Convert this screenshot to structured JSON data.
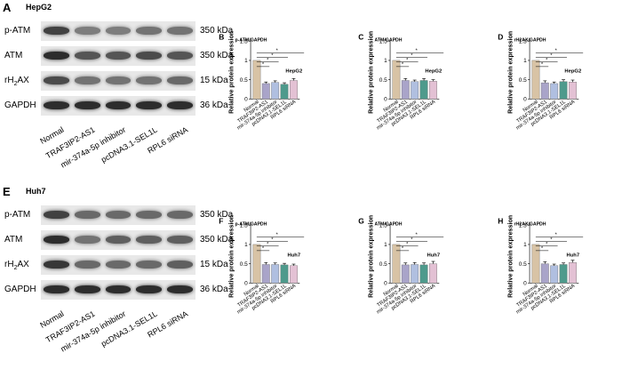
{
  "blots": [
    {
      "panel": "A",
      "cell_line": "HepG2",
      "proteins": [
        {
          "name": "p-ATM",
          "kda": "350 kDa",
          "intensity": [
            0.85,
            0.55,
            0.55,
            0.6,
            0.6
          ]
        },
        {
          "name": "ATM",
          "kda": "350 kDa",
          "intensity": [
            0.95,
            0.75,
            0.75,
            0.8,
            0.75
          ]
        },
        {
          "name": "rH2AX",
          "kda": "15 kDa",
          "intensity": [
            0.8,
            0.6,
            0.6,
            0.6,
            0.65
          ]
        },
        {
          "name": "GAPDH",
          "kda": "36 kDa",
          "intensity": [
            0.95,
            0.95,
            0.95,
            0.95,
            0.95
          ]
        }
      ],
      "lanes": [
        "Normal",
        "TRAF3IP2-AS1",
        "mir-374a-5p inhibitor",
        "pcDNA3.1-SEL1L",
        "RPL6 siRNA"
      ]
    },
    {
      "panel": "E",
      "cell_line": "Huh7",
      "proteins": [
        {
          "name": "p-ATM",
          "kda": "350 kDa",
          "intensity": [
            0.85,
            0.65,
            0.65,
            0.65,
            0.65
          ]
        },
        {
          "name": "ATM",
          "kda": "350 kDa",
          "intensity": [
            0.95,
            0.6,
            0.7,
            0.7,
            0.7
          ]
        },
        {
          "name": "rH2AX",
          "kda": "15 kDa",
          "intensity": [
            0.9,
            0.65,
            0.65,
            0.65,
            0.7
          ]
        },
        {
          "name": "GAPDH",
          "kda": "36 kDa",
          "intensity": [
            0.95,
            0.95,
            0.95,
            0.95,
            0.95
          ]
        }
      ],
      "lanes": [
        "Normal",
        "TRAF3IP2-AS1",
        "mir-374a-5p inhibitor",
        "pcDNA3.1-SEL1L",
        "RPL6 siRNA"
      ]
    }
  ],
  "colors": {
    "Normal": "#d8c3a5",
    "TRAF3IP2-AS1": "#a9a4c9",
    "mir-374a-5p inhibitor": "#b0bfe0",
    "pcDNA3.1-SEL1L": "#4e9a8c",
    "RPL6 siRNA": "#e3c1d4"
  },
  "chart_data": [
    {
      "panel": "B",
      "type": "bar",
      "title": "p-ATM/GAPDH",
      "cell_line": "HepG2",
      "ylabel": "Relative protein expression",
      "ylim": [
        0,
        1.5
      ],
      "yticks": [
        0,
        0.5,
        1,
        1.5
      ],
      "categories": [
        "Normal",
        "TRAF3IP2-AS1",
        "mir-374a-5p inhibitor",
        "pcDNA3.1-SEL1L",
        "RPL6 siRNA"
      ],
      "values": [
        1.0,
        0.4,
        0.43,
        0.38,
        0.48
      ],
      "errors": [
        0,
        0.04,
        0.04,
        0.04,
        0.05
      ],
      "significance": [
        "*",
        "*",
        "*",
        "*"
      ]
    },
    {
      "panel": "C",
      "type": "bar",
      "title": "ATM/GAPDH",
      "cell_line": "HepG2",
      "ylabel": "Relative protein expression",
      "ylim": [
        0,
        1.5
      ],
      "yticks": [
        0,
        0.5,
        1,
        1.5
      ],
      "categories": [
        "Normal",
        "TRAF3IP2-AS1",
        "mir-374a-5p inhibitor",
        "pcDNA3.1-SEL1L",
        "RPL6 siRNA"
      ],
      "values": [
        1.0,
        0.48,
        0.45,
        0.48,
        0.46
      ],
      "errors": [
        0,
        0.05,
        0.04,
        0.05,
        0.04
      ],
      "significance": [
        "*",
        "*",
        "*",
        "*"
      ]
    },
    {
      "panel": "D",
      "type": "bar",
      "title": "rH2AX/GAPDH",
      "cell_line": "HepG2",
      "ylabel": "Relative protein expression",
      "ylim": [
        0,
        1.5
      ],
      "yticks": [
        0,
        0.5,
        1,
        1.5
      ],
      "categories": [
        "Normal",
        "TRAF3IP2-AS1",
        "mir-374a-5p inhibitor",
        "pcDNA3.1-SEL1L",
        "RPL6 siRNA"
      ],
      "values": [
        1.0,
        0.42,
        0.4,
        0.45,
        0.44
      ],
      "errors": [
        0,
        0.05,
        0.04,
        0.05,
        0.05
      ],
      "significance": [
        "*",
        "*",
        "*",
        "*"
      ]
    },
    {
      "panel": "F",
      "type": "bar",
      "title": "p-ATM/GAPDH",
      "cell_line": "Huh7",
      "ylabel": "Relative protein expression",
      "ylim": [
        0,
        1.5
      ],
      "yticks": [
        0,
        0.5,
        1,
        1.5
      ],
      "categories": [
        "Normal",
        "TRAF3IP2-AS1",
        "mir-374a-5p inhibitor",
        "pcDNA3.1-SEL1L",
        "RPL6 siRNA"
      ],
      "values": [
        1.0,
        0.48,
        0.48,
        0.47,
        0.45
      ],
      "errors": [
        0,
        0.05,
        0.04,
        0.04,
        0.04
      ],
      "significance": [
        "*",
        "*",
        "*",
        "*"
      ]
    },
    {
      "panel": "G",
      "type": "bar",
      "title": "ATM/GAPDH",
      "cell_line": "Huh7",
      "ylabel": "Relative protein expression",
      "ylim": [
        0,
        1.5
      ],
      "yticks": [
        0,
        0.5,
        1,
        1.5
      ],
      "categories": [
        "Normal",
        "TRAF3IP2-AS1",
        "mir-374a-5p inhibitor",
        "pcDNA3.1-SEL1L",
        "RPL6 siRNA"
      ],
      "values": [
        1.0,
        0.47,
        0.48,
        0.47,
        0.5
      ],
      "errors": [
        0,
        0.05,
        0.05,
        0.05,
        0.06
      ],
      "significance": [
        "*",
        "*",
        "*",
        "*"
      ]
    },
    {
      "panel": "H",
      "type": "bar",
      "title": "rH2AX/GAPDH",
      "cell_line": "Huh7",
      "ylabel": "Relative protein expression",
      "ylim": [
        0,
        1.5
      ],
      "yticks": [
        0,
        0.5,
        1,
        1.5
      ],
      "categories": [
        "Normal",
        "TRAF3IP2-AS1",
        "mir-374a-5p inhibitor",
        "pcDNA3.1-SEL1L",
        "RPL6 siRNA"
      ],
      "values": [
        1.0,
        0.5,
        0.45,
        0.48,
        0.53
      ],
      "errors": [
        0,
        0.05,
        0.04,
        0.04,
        0.06
      ],
      "significance": [
        "*",
        "*",
        "*",
        "*"
      ]
    }
  ]
}
